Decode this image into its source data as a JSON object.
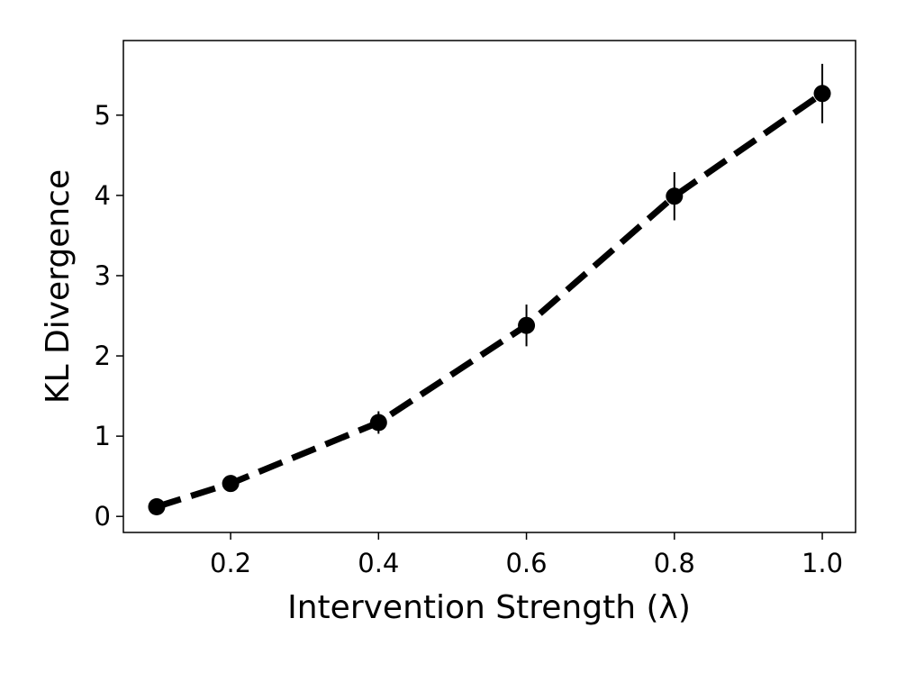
{
  "chart_data": {
    "type": "line",
    "x_label": "Intervention Strength (λ)",
    "y_label": "KL Divergence",
    "x": [
      0.1,
      0.2,
      0.4,
      0.6,
      0.8,
      1.0
    ],
    "series": [
      {
        "color": "#000000",
        "values": [
          0.12,
          0.41,
          1.17,
          2.38,
          3.99,
          5.27
        ],
        "errors": [
          0.03,
          0.05,
          0.14,
          0.26,
          0.3,
          0.37
        ]
      }
    ],
    "line_style": "dashed",
    "marker": "circle",
    "xlim": [
      0.055,
      1.045
    ],
    "ylim": [
      -0.2,
      5.93
    ],
    "xticks": [
      0.2,
      0.4,
      0.6,
      0.8,
      {
        "value": 1,
        "label": "1.0"
      }
    ],
    "yticks": [
      0,
      1,
      2,
      3,
      4,
      5
    ]
  }
}
